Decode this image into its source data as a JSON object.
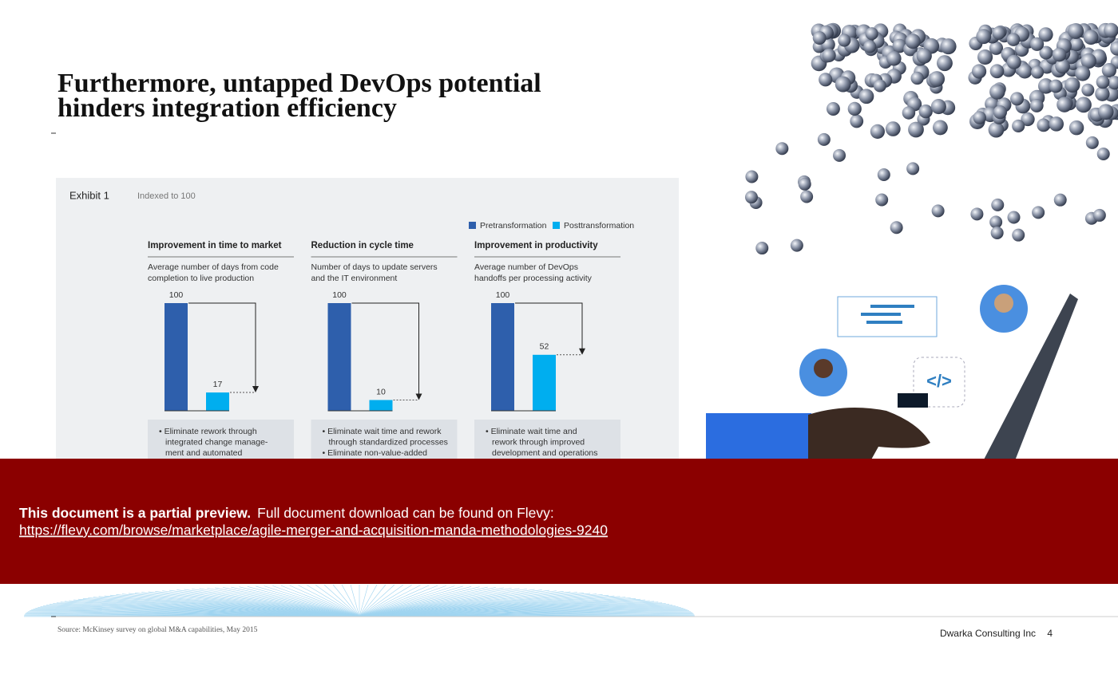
{
  "title_lines": [
    "Furthermore, untapped DevOps potential",
    "hinders integration efficiency"
  ],
  "exhibit": {
    "label": "Exhibit 1",
    "note": "Indexed to 100",
    "legend": [
      {
        "name": "Pretransformation",
        "color": "#2e5fac"
      },
      {
        "name": "Posttransformation",
        "color": "#00aeef"
      }
    ],
    "charts": [
      {
        "type": "bar",
        "title": "Improvement in time to market",
        "subtitle_lines": [
          "Average number of days from code",
          "completion to live production"
        ],
        "values": [
          100,
          17
        ],
        "bullet_lines": [
          "• Eliminate rework through",
          "integrated change manage-",
          "ment and automated"
        ]
      },
      {
        "type": "bar",
        "title": "Reduction in cycle time",
        "subtitle_lines": [
          "Number of days to update servers",
          "and the IT environment"
        ],
        "values": [
          100,
          10
        ],
        "bullet_lines": [
          "• Eliminate wait time and rework",
          "through standardized processes",
          "• Eliminate non-value-added"
        ]
      },
      {
        "type": "bar",
        "title": "Improvement in productivity",
        "subtitle_lines": [
          "Average number of DevOps",
          "handoffs per processing activity"
        ],
        "values": [
          100,
          52
        ],
        "bullet_lines": [
          "• Eliminate wait time and",
          "rework through improved",
          "development and operations"
        ]
      }
    ]
  },
  "banner": {
    "bold": "This document is a partial preview.",
    "text": "Full document download can be found on Flevy:",
    "link": "https://flevy.com/browse/marketplace/agile-merger-and-acquisition-manda-methodologies-9240"
  },
  "source": "Source: McKinsey survey on global M&A capabilities, May 2015",
  "footer": {
    "company": "Dwarka Consulting Inc",
    "page": "4"
  }
}
